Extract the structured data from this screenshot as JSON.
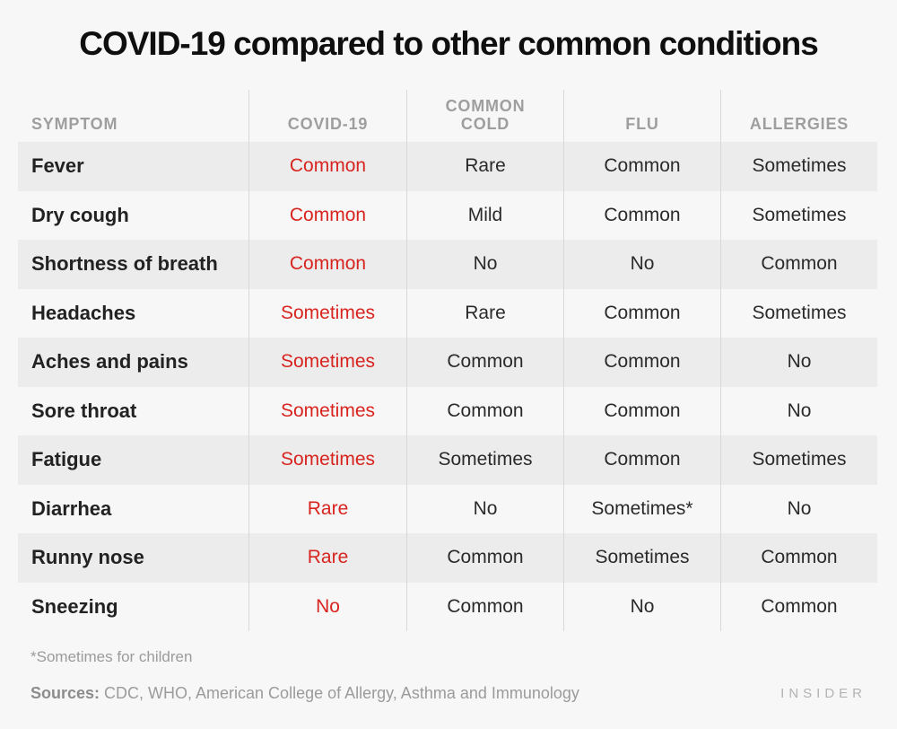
{
  "page": {
    "title": "COVID-19 compared to other common conditions",
    "footnote": "*Sometimes for children",
    "sources_label": "Sources:",
    "sources_text": " CDC, WHO,  American College of Allergy, Asthma and Immunology",
    "brand": "INSIDER"
  },
  "colors": {
    "background": "#f7f7f7",
    "row_alt": "#ececec",
    "divider": "#d8d8d8",
    "accent_red": "#d8241f",
    "header_gray": "#9e9e9e",
    "text_dark": "#2a2a2a",
    "muted_gray": "#9b9b9b"
  },
  "table": {
    "headers": [
      "SYMPTOM",
      "COVID-19",
      "COMMON\nCOLD",
      "FLU",
      "ALLERGIES"
    ],
    "rows": [
      {
        "symptom": "Fever",
        "values": [
          "Common",
          "Rare",
          "Common",
          "Sometimes"
        ]
      },
      {
        "symptom": "Dry cough",
        "values": [
          "Common",
          "Mild",
          "Common",
          "Sometimes"
        ]
      },
      {
        "symptom": "Shortness of breath",
        "values": [
          "Common",
          "No",
          "No",
          "Common"
        ]
      },
      {
        "symptom": "Headaches",
        "values": [
          "Sometimes",
          "Rare",
          "Common",
          "Sometimes"
        ]
      },
      {
        "symptom": "Aches and pains",
        "values": [
          "Sometimes",
          "Common",
          "Common",
          "No"
        ]
      },
      {
        "symptom": "Sore throat",
        "values": [
          "Sometimes",
          "Common",
          "Common",
          "No"
        ]
      },
      {
        "symptom": "Fatigue",
        "values": [
          "Sometimes",
          "Sometimes",
          "Common",
          "Sometimes"
        ]
      },
      {
        "symptom": "Diarrhea",
        "values": [
          "Rare",
          "No",
          "Sometimes*",
          "No"
        ]
      },
      {
        "symptom": "Runny nose",
        "values": [
          "Rare",
          "Common",
          "Sometimes",
          "Common"
        ]
      },
      {
        "symptom": "Sneezing",
        "values": [
          "No",
          "Common",
          "No",
          "Common"
        ]
      }
    ]
  },
  "chart_data": {
    "type": "table",
    "title": "COVID-19 compared to other common conditions",
    "columns": [
      "SYMPTOM",
      "COVID-19",
      "COMMON COLD",
      "FLU",
      "ALLERGIES"
    ],
    "rows": [
      [
        "Fever",
        "Common",
        "Rare",
        "Common",
        "Sometimes"
      ],
      [
        "Dry cough",
        "Common",
        "Mild",
        "Common",
        "Sometimes"
      ],
      [
        "Shortness of breath",
        "Common",
        "No",
        "No",
        "Common"
      ],
      [
        "Headaches",
        "Sometimes",
        "Rare",
        "Common",
        "Sometimes"
      ],
      [
        "Aches and pains",
        "Sometimes",
        "Common",
        "Common",
        "No"
      ],
      [
        "Sore throat",
        "Sometimes",
        "Common",
        "Common",
        "No"
      ],
      [
        "Fatigue",
        "Sometimes",
        "Sometimes",
        "Common",
        "Sometimes"
      ],
      [
        "Diarrhea",
        "Rare",
        "No",
        "Sometimes*",
        "No"
      ],
      [
        "Runny nose",
        "Rare",
        "Common",
        "Sometimes",
        "Common"
      ],
      [
        "Sneezing",
        "No",
        "Common",
        "No",
        "Common"
      ]
    ],
    "notes": {
      "covid19_column_color": "#d8241f",
      "footnote": "*Sometimes for children",
      "sources": "CDC, WHO, American College of Allergy, Asthma and Immunology",
      "row_banding": "odd rows shaded #ececec",
      "legend_position": "none",
      "grid": "vertical dividers only"
    }
  }
}
